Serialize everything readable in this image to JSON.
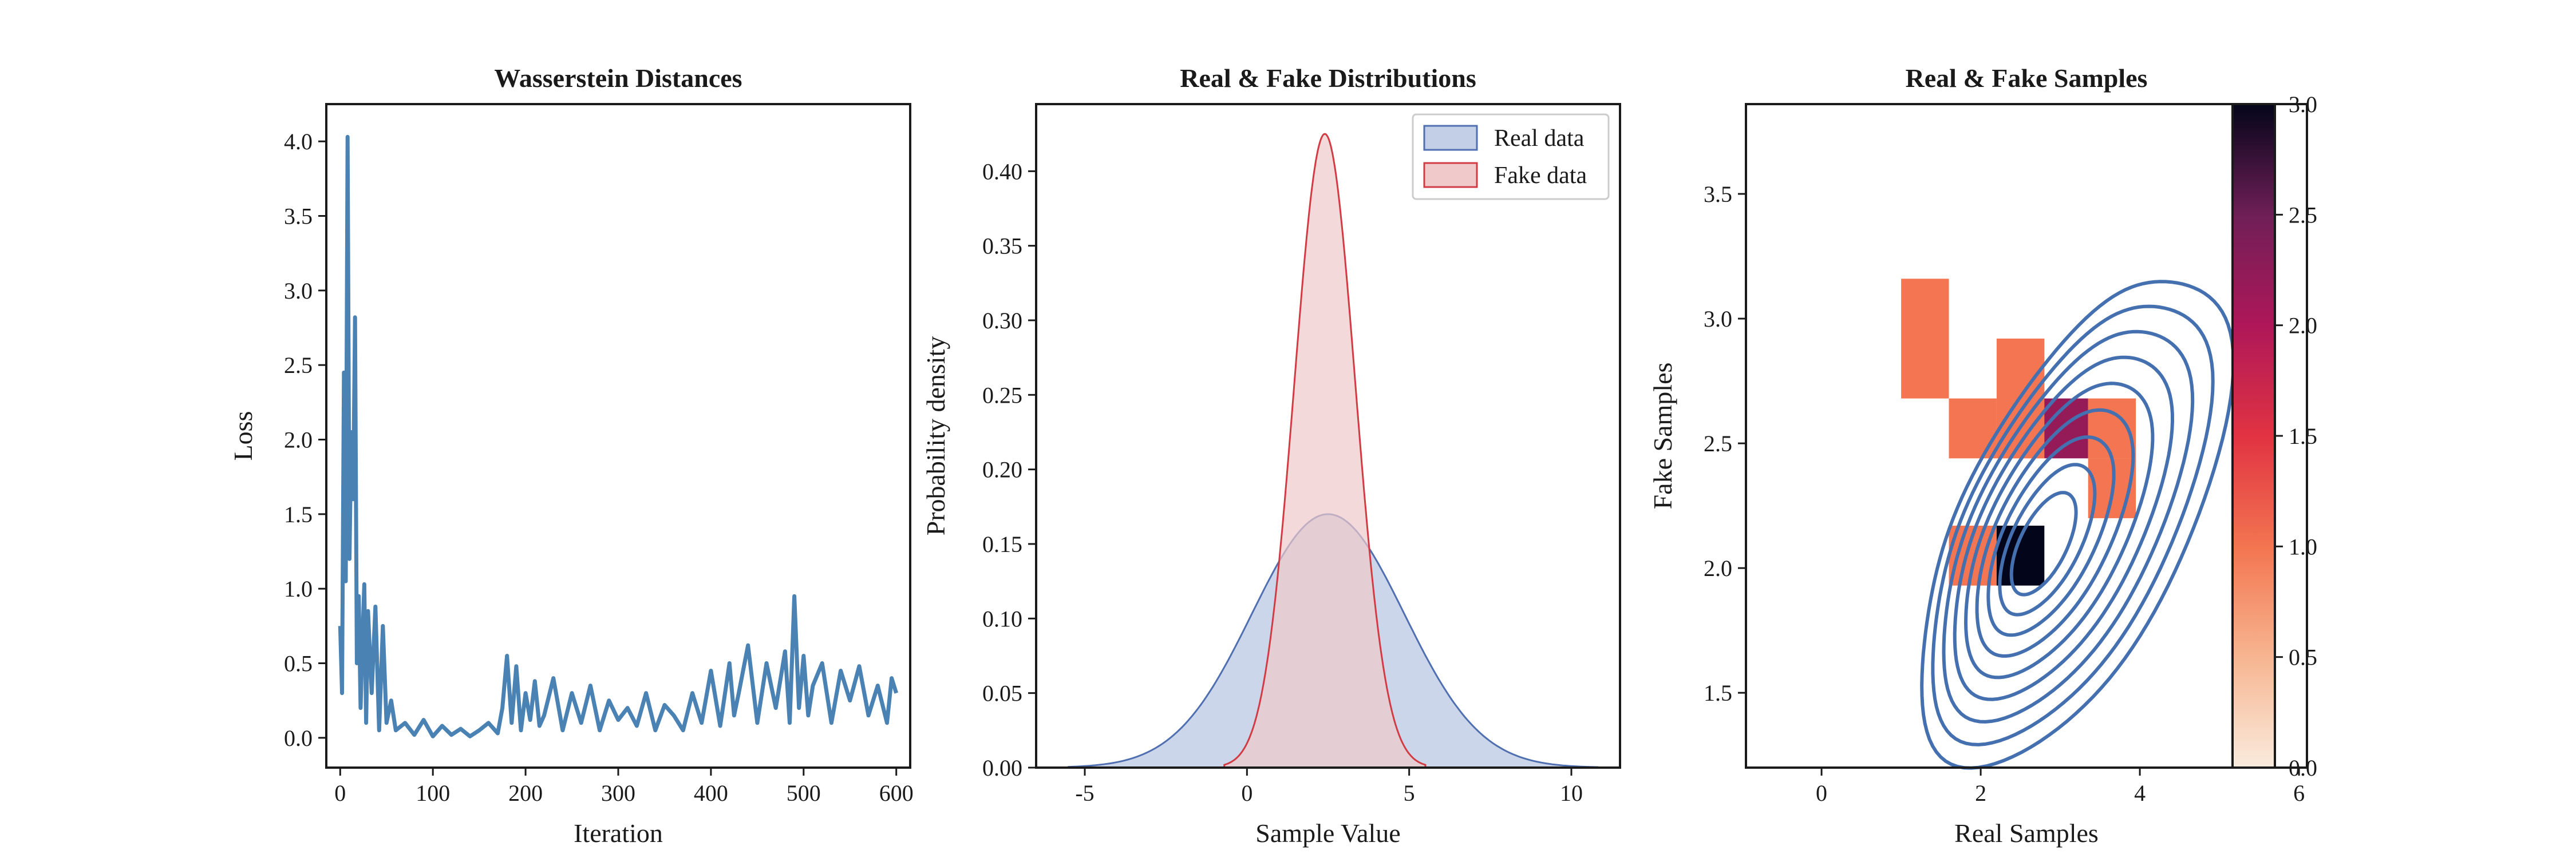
{
  "colors": {
    "line": "#4a82b4",
    "real_fill": "#c3cfe6",
    "real_edge": "#4f6fb0",
    "fake_fill": "#f0c9cb",
    "fake_edge": "#d13c44",
    "contour": "#4570b0",
    "axis": "#1a1a1a"
  },
  "chart_data": [
    {
      "type": "line",
      "title": "Wasserstein Distances",
      "xlabel": "Iteration",
      "ylabel": "Loss",
      "xlim": [
        -15,
        615
      ],
      "ylim": [
        -0.2,
        4.25
      ],
      "xticks": [
        0,
        100,
        200,
        300,
        400,
        500,
        600
      ],
      "yticks": [
        0.0,
        0.5,
        1.0,
        1.5,
        2.0,
        2.5,
        3.0,
        3.5,
        4.0
      ],
      "ytick_labels": [
        "0.0",
        "0.5",
        "1.0",
        "1.5",
        "2.0",
        "2.5",
        "3.0",
        "3.5",
        "4.0"
      ],
      "series": [
        {
          "x": [
            0,
            2,
            4,
            6,
            8,
            10,
            12,
            14,
            16,
            18,
            20,
            22,
            24,
            26,
            28,
            30,
            34,
            38,
            42,
            46,
            50,
            55,
            60,
            70,
            80,
            90,
            100,
            110,
            120,
            130,
            140,
            150,
            160,
            170,
            175,
            180,
            185,
            190,
            195,
            200,
            205,
            210,
            215,
            220,
            230,
            240,
            250,
            260,
            270,
            280,
            290,
            300,
            310,
            320,
            330,
            340,
            350,
            360,
            370,
            380,
            390,
            400,
            410,
            420,
            425,
            430,
            440,
            450,
            460,
            470,
            480,
            485,
            490,
            495,
            500,
            505,
            510,
            520,
            530,
            540,
            550,
            560,
            570,
            580,
            590,
            595,
            600
          ],
          "values": [
            0.75,
            0.3,
            2.45,
            1.05,
            4.03,
            1.2,
            2.05,
            1.6,
            2.82,
            0.5,
            0.95,
            0.2,
            0.65,
            1.03,
            0.1,
            0.85,
            0.3,
            0.88,
            0.05,
            0.75,
            0.1,
            0.25,
            0.05,
            0.1,
            0.02,
            0.12,
            0.01,
            0.08,
            0.02,
            0.06,
            0.01,
            0.05,
            0.1,
            0.03,
            0.2,
            0.55,
            0.1,
            0.48,
            0.05,
            0.3,
            0.12,
            0.38,
            0.08,
            0.15,
            0.4,
            0.05,
            0.3,
            0.1,
            0.35,
            0.05,
            0.25,
            0.12,
            0.2,
            0.08,
            0.3,
            0.05,
            0.22,
            0.15,
            0.05,
            0.3,
            0.1,
            0.45,
            0.08,
            0.5,
            0.15,
            0.3,
            0.62,
            0.1,
            0.5,
            0.2,
            0.58,
            0.1,
            0.95,
            0.2,
            0.55,
            0.15,
            0.35,
            0.5,
            0.1,
            0.45,
            0.25,
            0.48,
            0.15,
            0.35,
            0.1,
            0.4,
            0.3
          ]
        }
      ]
    },
    {
      "type": "area",
      "title": "Real & Fake Distributions",
      "xlabel": "Sample Value",
      "ylabel": "Probability density",
      "xlim": [
        -6.5,
        11.5
      ],
      "ylim": [
        0,
        0.445
      ],
      "xticks": [
        -5,
        0,
        5,
        10
      ],
      "xtick_labels": [
        "-5",
        "0",
        "5",
        "10"
      ],
      "yticks": [
        0.0,
        0.05,
        0.1,
        0.15,
        0.2,
        0.25,
        0.3,
        0.35,
        0.4
      ],
      "ytick_labels": [
        "0.00",
        "0.05",
        "0.10",
        "0.15",
        "0.20",
        "0.25",
        "0.30",
        "0.35",
        "0.40"
      ],
      "legend": "top-right",
      "series": [
        {
          "name": "Real data",
          "type": "gaussian",
          "mean": 2.5,
          "sd": 2.35,
          "x_range": [
            -5.5,
            10.8
          ],
          "peak": 0.17
        },
        {
          "name": "Fake data",
          "type": "gaussian",
          "mean": 2.4,
          "sd": 0.94,
          "x_range": [
            -0.7,
            5.5
          ],
          "peak": 0.425
        }
      ]
    },
    {
      "type": "heatmap",
      "title": "Real & Fake Samples",
      "xlabel": "Real Samples",
      "ylabel": "Fake Samples",
      "xlim": [
        -0.95,
        6.1
      ],
      "ylim": [
        1.2,
        3.86
      ],
      "xticks": [
        0,
        2,
        4,
        6
      ],
      "yticks": [
        1.5,
        2.0,
        2.5,
        3.0,
        3.5
      ],
      "ytick_labels": [
        "1.5",
        "2.0",
        "2.5",
        "3.0",
        "3.5"
      ],
      "cells": [
        {
          "x0": 1.0,
          "x1": 1.6,
          "y0": 2.68,
          "y1": 3.16,
          "count": 1
        },
        {
          "x0": 2.2,
          "x1": 2.8,
          "y0": 2.44,
          "y1": 2.92,
          "count": 1
        },
        {
          "x0": 1.6,
          "x1": 2.2,
          "y0": 2.44,
          "y1": 2.68,
          "count": 1
        },
        {
          "x0": 2.2,
          "x1": 2.8,
          "y0": 2.44,
          "y1": 2.68,
          "count": 1
        },
        {
          "x0": 2.8,
          "x1": 3.35,
          "y0": 2.44,
          "y1": 2.68,
          "count": 2.2
        },
        {
          "x0": 3.35,
          "x1": 3.95,
          "y0": 2.44,
          "y1": 2.68,
          "count": 1
        },
        {
          "x0": 3.35,
          "x1": 3.95,
          "y0": 2.2,
          "y1": 2.44,
          "count": 1
        },
        {
          "x0": 1.6,
          "x1": 2.2,
          "y0": 1.93,
          "y1": 2.17,
          "count": 1
        },
        {
          "x0": 2.2,
          "x1": 2.8,
          "y0": 1.93,
          "y1": 2.17,
          "count": 3
        }
      ],
      "contour_center": [
        2.75,
        2.08
      ],
      "contour_levels": 9,
      "colorbar": {
        "range": [
          0,
          3
        ],
        "ticks": [
          0.0,
          0.5,
          1.0,
          1.5,
          2.0,
          2.5,
          3.0
        ],
        "tick_labels": [
          "0.0",
          "0.5",
          "1.0",
          "1.5",
          "2.0",
          "2.5",
          "3.0"
        ],
        "colormap": "rocket_r"
      }
    }
  ]
}
